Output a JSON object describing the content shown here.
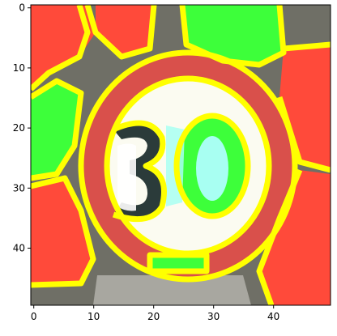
{
  "chart_data": {
    "type": "heatmap",
    "image_size": [
      50,
      50
    ],
    "x_ticks": [
      "0",
      "10",
      "20",
      "30",
      "40"
    ],
    "y_ticks": [
      "0",
      "10",
      "20",
      "30",
      "40"
    ],
    "x_tick_values": [
      0,
      10,
      20,
      30,
      40
    ],
    "y_tick_values": [
      0,
      10,
      20,
      30,
      40
    ],
    "xlim": [
      -0.5,
      49.5
    ],
    "ylim": [
      49.5,
      -0.5
    ],
    "grid": false,
    "colors": {
      "mask_red": "#ff4a3a",
      "mask_green": "#3dff3a",
      "boundary_yellow": "#ffff00",
      "sign_white": "#fbfbf1",
      "sign_red_ring": "#d9504b",
      "background_gray": "#6f6f66",
      "digit_dark": "#2b3b3a",
      "digit_cyan": "#a8fff2"
    },
    "image_content": "segmentation overlay of a circular 30 speed-limit traffic sign"
  }
}
